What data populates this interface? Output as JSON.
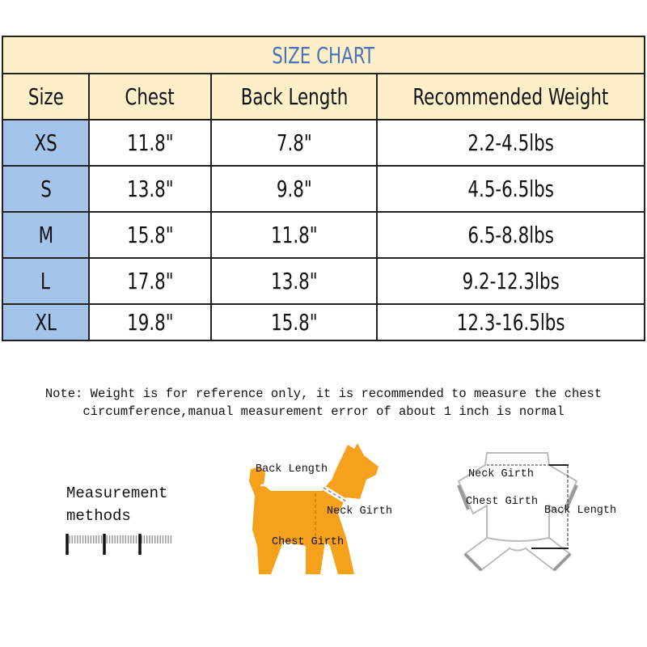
{
  "table": {
    "title": "SIZE CHART",
    "headers": [
      "Size",
      "Chest",
      "Back Length",
      "Recommended Weight"
    ],
    "rows": [
      [
        "XS",
        "11.8\"",
        "7.8\"",
        "2.2-4.5lbs"
      ],
      [
        "S",
        "13.8\"",
        "9.8\"",
        "4.5-6.5lbs"
      ],
      [
        "M",
        "15.8\"",
        "11.8\"",
        "6.5-8.8lbs"
      ],
      [
        "L",
        "17.8\"",
        "13.8\"",
        "9.2-12.3lbs"
      ],
      [
        "XL",
        "19.8\"",
        "15.8\"",
        "12.3-16.5lbs"
      ]
    ]
  },
  "note": {
    "line1": "Note: Weight is for reference only, it is recommended to measure the chest",
    "line2": "circumference,manual measurement error of about 1 inch is normal"
  },
  "measurement": {
    "line1": "Measurement",
    "line2": "methods"
  },
  "dog_labels": {
    "back_length": "Back Length",
    "neck_girth": "Neck Girth",
    "chest_girth": "Chest Girth"
  },
  "garment_labels": {
    "neck_girth": "Neck Girth",
    "chest_girth": "Chest Girth",
    "back_length": "Back Length"
  },
  "colors": {
    "title_bg": "#fdf0c9",
    "title_text": "#4a72b8",
    "size_col": "#a4c4ea",
    "dog": "#f5a11c"
  }
}
